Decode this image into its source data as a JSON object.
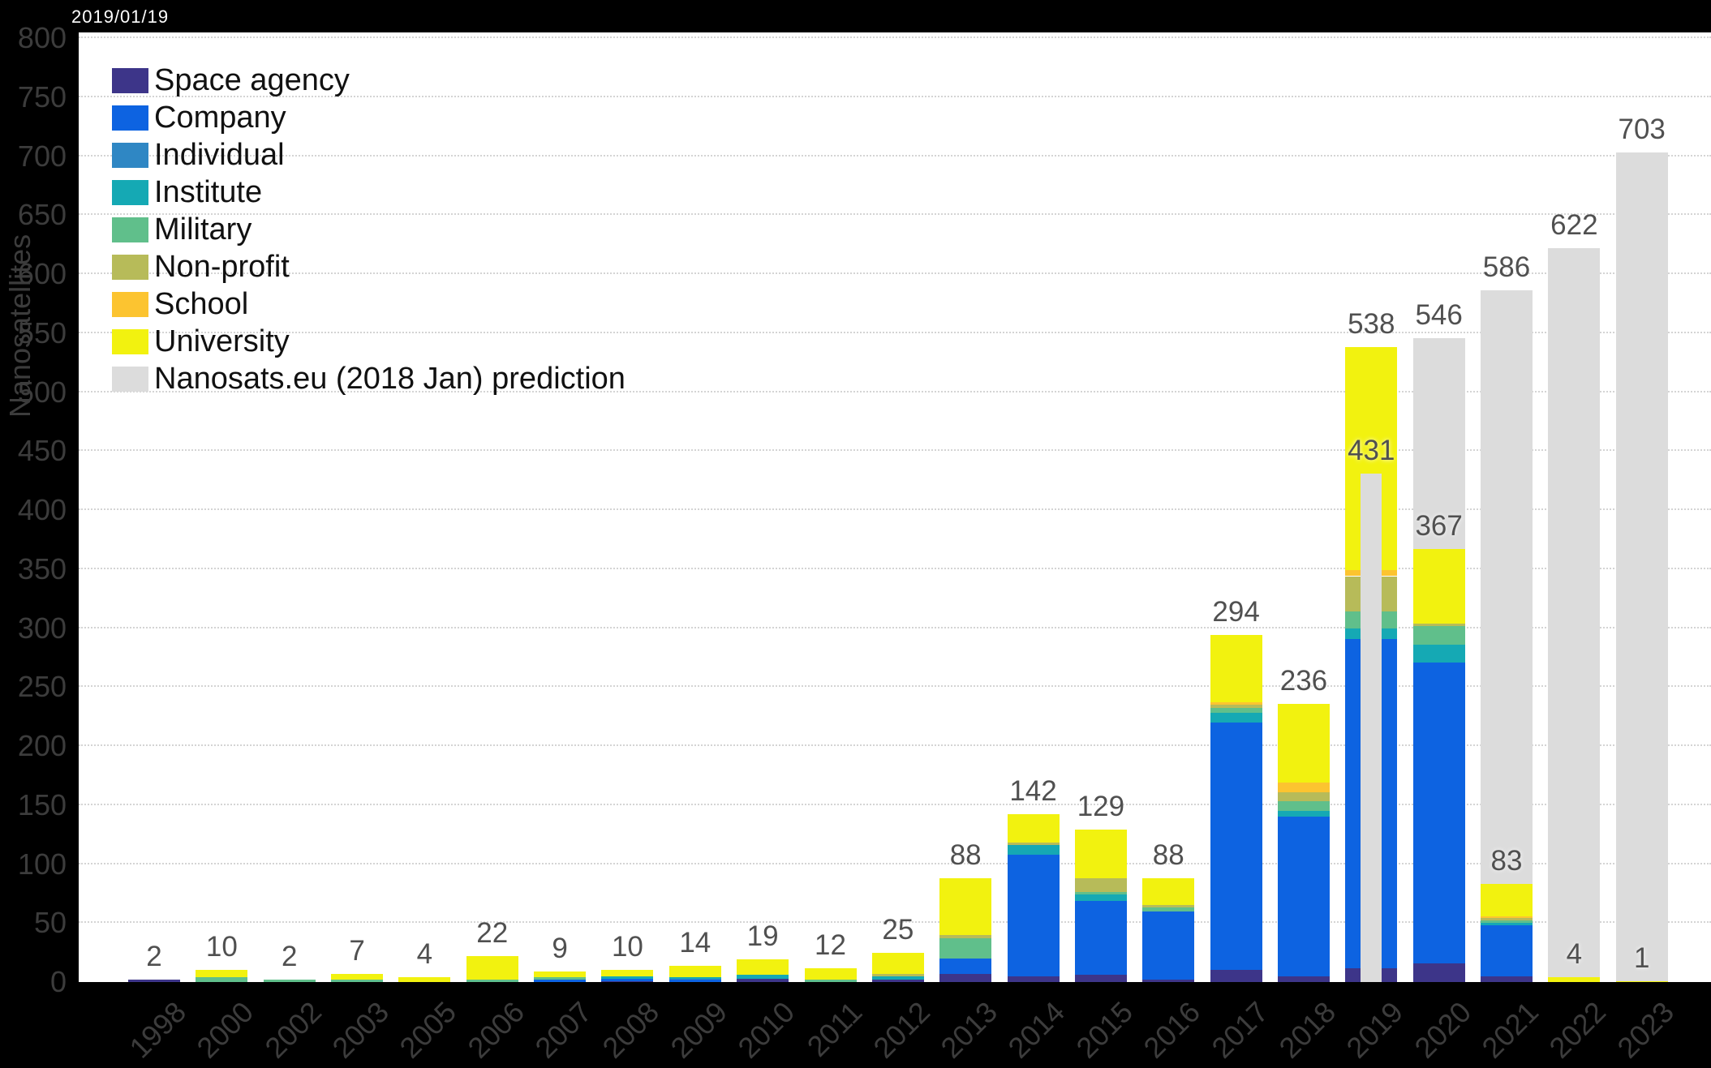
{
  "date_label": "2019/01/19",
  "legend": [
    {
      "label": "Space agency",
      "color": "#3d3589"
    },
    {
      "label": "Company",
      "color": "#0d63e1"
    },
    {
      "label": "Individual",
      "color": "#2f87c4"
    },
    {
      "label": "Institute",
      "color": "#15a9b4"
    },
    {
      "label": "Military",
      "color": "#60bf8b"
    },
    {
      "label": "Non-profit",
      "color": "#b7bb59"
    },
    {
      "label": "School",
      "color": "#fcc430"
    },
    {
      "label": "University",
      "color": "#f2f20f"
    },
    {
      "label": "Nanosats.eu (2018 Jan) prediction",
      "color": "#dcdcdc"
    }
  ],
  "chart_data": {
    "type": "bar",
    "stacked": true,
    "title": "",
    "ylabel": "Nanosatellites",
    "ylim": [
      0,
      800
    ],
    "ytick_step": 50,
    "grid": "dotted horizontal",
    "legend_position": "top-left inside plot",
    "categories": [
      "1998",
      "2000",
      "2002",
      "2003",
      "2005",
      "2006",
      "2007",
      "2008",
      "2009",
      "2010",
      "2011",
      "2012",
      "2013",
      "2014",
      "2015",
      "2016",
      "2017",
      "2018",
      "2019",
      "2020",
      "2021",
      "2022",
      "2023"
    ],
    "series": [
      {
        "name": "Space agency",
        "color": "#3d3589",
        "values": [
          2,
          0,
          0,
          0,
          0,
          0,
          0,
          1,
          0,
          3,
          0,
          2,
          7,
          5,
          6,
          2,
          10,
          5,
          12,
          16,
          5,
          0,
          0
        ]
      },
      {
        "name": "Company",
        "color": "#0d63e1",
        "values": [
          0,
          0,
          0,
          0,
          0,
          0,
          2,
          2,
          2,
          0,
          0,
          0,
          13,
          103,
          63,
          58,
          210,
          135,
          279,
          255,
          43,
          0,
          0
        ]
      },
      {
        "name": "Individual",
        "color": "#2f87c4",
        "values": [
          0,
          0,
          0,
          0,
          0,
          0,
          0,
          0,
          1,
          0,
          0,
          0,
          0,
          0,
          0,
          0,
          0,
          0,
          0,
          0,
          0,
          0,
          0
        ]
      },
      {
        "name": "Institute",
        "color": "#15a9b4",
        "values": [
          0,
          0,
          0,
          0,
          0,
          0,
          0,
          2,
          1,
          3,
          0,
          3,
          0,
          8,
          5,
          0,
          8,
          5,
          9,
          15,
          2,
          0,
          0
        ]
      },
      {
        "name": "Military",
        "color": "#60bf8b",
        "values": [
          0,
          4,
          2,
          2,
          0,
          2,
          2,
          0,
          0,
          0,
          2,
          0,
          17,
          0,
          2,
          3,
          4,
          8,
          14,
          16,
          2,
          0,
          0
        ]
      },
      {
        "name": "Non-profit",
        "color": "#b7bb59",
        "values": [
          0,
          0,
          0,
          0,
          0,
          0,
          0,
          0,
          0,
          0,
          0,
          2,
          3,
          2,
          12,
          2,
          3,
          8,
          30,
          2,
          2,
          0,
          0
        ]
      },
      {
        "name": "School",
        "color": "#fcc430",
        "values": [
          0,
          0,
          0,
          0,
          0,
          0,
          0,
          0,
          0,
          0,
          0,
          0,
          0,
          0,
          0,
          0,
          2,
          8,
          5,
          0,
          2,
          0,
          0
        ]
      },
      {
        "name": "University",
        "color": "#f2f20f",
        "values": [
          0,
          6,
          0,
          5,
          4,
          20,
          5,
          5,
          10,
          13,
          10,
          18,
          48,
          24,
          41,
          23,
          57,
          67,
          189,
          63,
          27,
          4,
          1
        ]
      }
    ],
    "totals": [
      2,
      10,
      2,
      7,
      4,
      22,
      9,
      10,
      14,
      19,
      12,
      25,
      88,
      142,
      129,
      88,
      294,
      236,
      538,
      367,
      83,
      4,
      1
    ],
    "predictions": [
      null,
      null,
      null,
      null,
      null,
      null,
      null,
      null,
      null,
      null,
      null,
      null,
      null,
      null,
      null,
      null,
      null,
      null,
      431,
      546,
      586,
      622,
      703
    ],
    "prediction_series_name": "Nanosats.eu (2018 Jan) prediction",
    "prediction_color": "#dcdcdc"
  }
}
